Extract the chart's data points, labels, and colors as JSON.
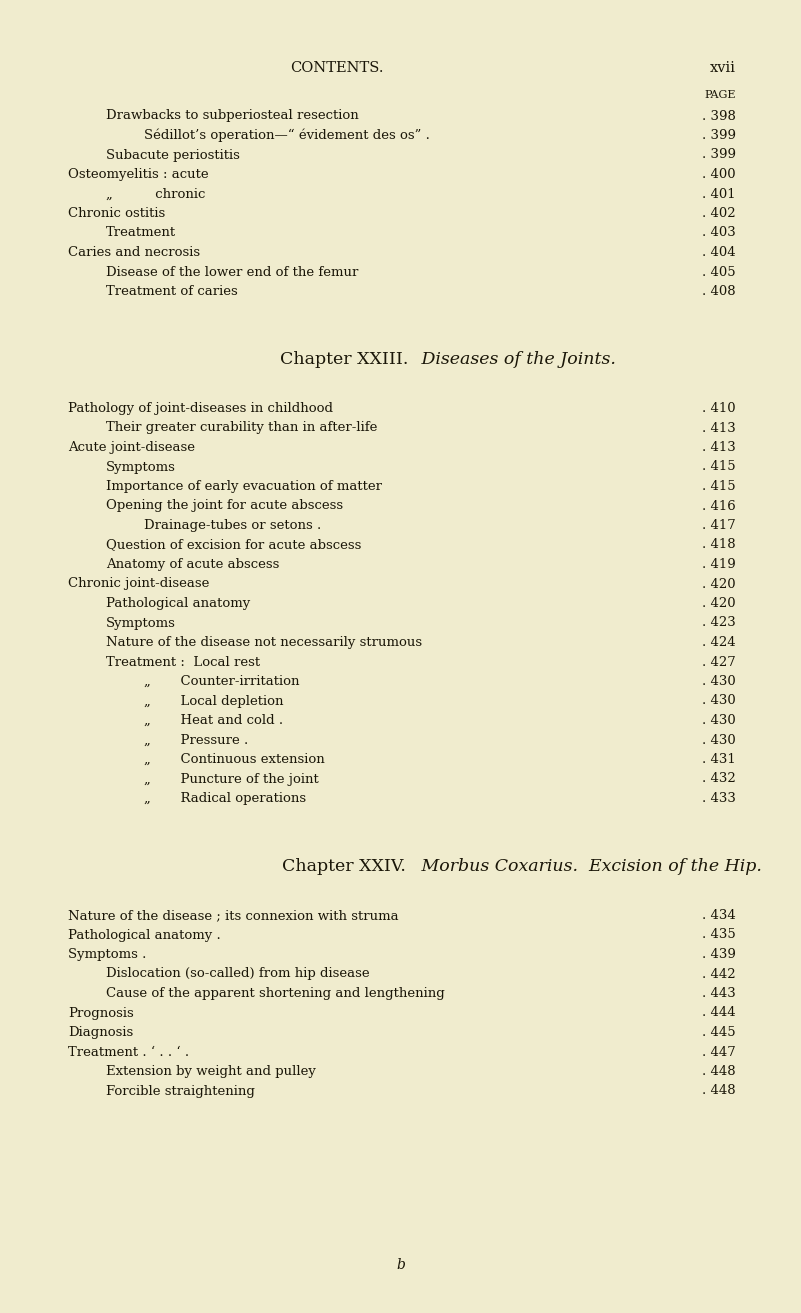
{
  "bg_color": "#f0ecce",
  "text_color": "#1a1608",
  "figwidth": 8.01,
  "figheight": 13.13,
  "dpi": 100,
  "header_left": "CONTENTS.",
  "header_right": "xvii",
  "page_label": "PAGE",
  "footer_text": "b",
  "sections": [
    {
      "type": "entry",
      "indent": 1,
      "text": "Drawbacks to subperiosteal resection",
      "page": "398"
    },
    {
      "type": "entry",
      "indent": 2,
      "text": "Sédillot’s operation—“ évidement des os” .",
      "page": "399"
    },
    {
      "type": "entry",
      "indent": 1,
      "text": "Subacute periostitis",
      "page": "399"
    },
    {
      "type": "entry",
      "indent": 0,
      "text": "Osteomyelitis : acute",
      "page": "400"
    },
    {
      "type": "entry",
      "indent": 1,
      "text": "„          chronic",
      "page": "401"
    },
    {
      "type": "entry",
      "indent": 0,
      "text": "Chronic ostitis",
      "page": "402"
    },
    {
      "type": "entry",
      "indent": 1,
      "text": "Treatment",
      "page": "403"
    },
    {
      "type": "entry",
      "indent": 0,
      "text": "Caries and necrosis",
      "page": "404"
    },
    {
      "type": "entry",
      "indent": 1,
      "text": "Disease of the lower end of the femur",
      "page": "405"
    },
    {
      "type": "entry",
      "indent": 1,
      "text": "Treatment of caries",
      "page": "408"
    },
    {
      "type": "vspace",
      "amount": 2.5
    },
    {
      "type": "chapter",
      "sc_text": "Chapter XXIII.",
      "italic_text": " Diseases of the Joints."
    },
    {
      "type": "vspace",
      "amount": 1.5
    },
    {
      "type": "entry",
      "indent": 0,
      "text": "Pathology of joint-diseases in childhood",
      "page": "410"
    },
    {
      "type": "entry",
      "indent": 1,
      "text": "Their greater curability than in after-life",
      "page": "413"
    },
    {
      "type": "entry",
      "indent": 0,
      "text": "Acute joint-disease",
      "page": "413"
    },
    {
      "type": "entry",
      "indent": 1,
      "text": "Symptoms",
      "page": "415"
    },
    {
      "type": "entry",
      "indent": 1,
      "text": "Importance of early evacuation of matter",
      "page": "415"
    },
    {
      "type": "entry",
      "indent": 1,
      "text": "Opening the joint for acute abscess",
      "page": "416"
    },
    {
      "type": "entry",
      "indent": 2,
      "text": "Drainage-tubes or setons .",
      "page": "417"
    },
    {
      "type": "entry",
      "indent": 1,
      "text": "Question of excision for acute abscess",
      "page": "418"
    },
    {
      "type": "entry",
      "indent": 1,
      "text": "Anatomy of acute abscess",
      "page": "419"
    },
    {
      "type": "entry",
      "indent": 0,
      "text": "Chronic joint-disease",
      "page": "420"
    },
    {
      "type": "entry",
      "indent": 1,
      "text": "Pathological anatomy",
      "page": "420"
    },
    {
      "type": "entry",
      "indent": 1,
      "text": "Symptoms",
      "page": "423"
    },
    {
      "type": "entry",
      "indent": 1,
      "text": "Nature of the disease not necessarily strumous",
      "page": "424"
    },
    {
      "type": "entry",
      "indent": 1,
      "text": "Treatment :  Local rest",
      "page": "427"
    },
    {
      "type": "entry",
      "indent": 2,
      "text": "„       Counter-irritation",
      "page": "430"
    },
    {
      "type": "entry",
      "indent": 2,
      "text": "„       Local depletion",
      "page": "430"
    },
    {
      "type": "entry",
      "indent": 2,
      "text": "„       Heat and cold .",
      "page": "430"
    },
    {
      "type": "entry",
      "indent": 2,
      "text": "„       Pressure .",
      "page": "430"
    },
    {
      "type": "entry",
      "indent": 2,
      "text": "„       Continuous extension",
      "page": "431"
    },
    {
      "type": "entry",
      "indent": 2,
      "text": "„       Puncture of the joint",
      "page": "432"
    },
    {
      "type": "entry",
      "indent": 2,
      "text": "„       Radical operations",
      "page": "433"
    },
    {
      "type": "vspace",
      "amount": 2.5
    },
    {
      "type": "chapter",
      "sc_text": "Chapter XXIV.",
      "italic_text": " Morbus Coxarius.  Excision of the Hip."
    },
    {
      "type": "vspace",
      "amount": 1.5
    },
    {
      "type": "entry",
      "indent": 0,
      "text": "Nature of the disease ; its connexion with struma",
      "page": "434"
    },
    {
      "type": "entry",
      "indent": 0,
      "text": "Pathological anatomy .",
      "page": "435"
    },
    {
      "type": "entry",
      "indent": 0,
      "text": "Symptoms .",
      "page": "439"
    },
    {
      "type": "entry",
      "indent": 1,
      "text": "Dislocation (so-called) from hip disease",
      "page": "442"
    },
    {
      "type": "entry",
      "indent": 1,
      "text": "Cause of the apparent shortening and lengthening",
      "page": "443"
    },
    {
      "type": "entry",
      "indent": 0,
      "text": "Prognosis",
      "page": "444"
    },
    {
      "type": "entry",
      "indent": 0,
      "text": "Diagnosis",
      "page": "445"
    },
    {
      "type": "entry",
      "indent": 0,
      "text": "Treatment . ‘ . . ‘ .",
      "page": "447"
    },
    {
      "type": "entry",
      "indent": 1,
      "text": "Extension by weight and pulley",
      "page": "448"
    },
    {
      "type": "entry",
      "indent": 1,
      "text": "Forcible straightening",
      "page": "448"
    }
  ]
}
